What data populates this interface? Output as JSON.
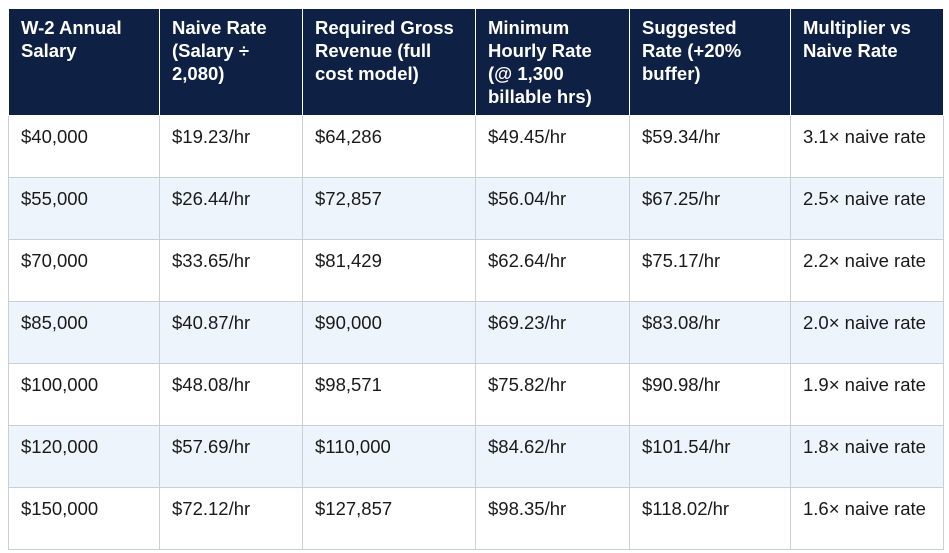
{
  "table": {
    "headers": [
      "W-2 Annual Salary",
      "Naive Rate (Salary ÷ 2,080)",
      "Required Gross Revenue (full cost model)",
      "Minimum Hourly Rate (@ 1,300 billable hrs)",
      "Suggested Rate (+20% buffer)",
      "Multiplier vs Naive Rate"
    ],
    "rows": [
      [
        "$40,000",
        "$19.23/hr",
        "$64,286",
        "$49.45/hr",
        "$59.34/hr",
        "3.1× naive rate"
      ],
      [
        "$55,000",
        "$26.44/hr",
        "$72,857",
        "$56.04/hr",
        "$67.25/hr",
        "2.5× naive rate"
      ],
      [
        "$70,000",
        "$33.65/hr",
        "$81,429",
        "$62.64/hr",
        "$75.17/hr",
        "2.2× naive rate"
      ],
      [
        "$85,000",
        "$40.87/hr",
        "$90,000",
        "$69.23/hr",
        "$83.08/hr",
        "2.0× naive rate"
      ],
      [
        "$100,000",
        "$48.08/hr",
        "$98,571",
        "$75.82/hr",
        "$90.98/hr",
        "1.9× naive rate"
      ],
      [
        "$120,000",
        "$57.69/hr",
        "$110,000",
        "$84.62/hr",
        "$101.54/hr",
        "1.8× naive rate"
      ],
      [
        "$150,000",
        "$72.12/hr",
        "$127,857",
        "$98.35/hr",
        "$118.02/hr",
        "1.6× naive rate"
      ]
    ]
  }
}
